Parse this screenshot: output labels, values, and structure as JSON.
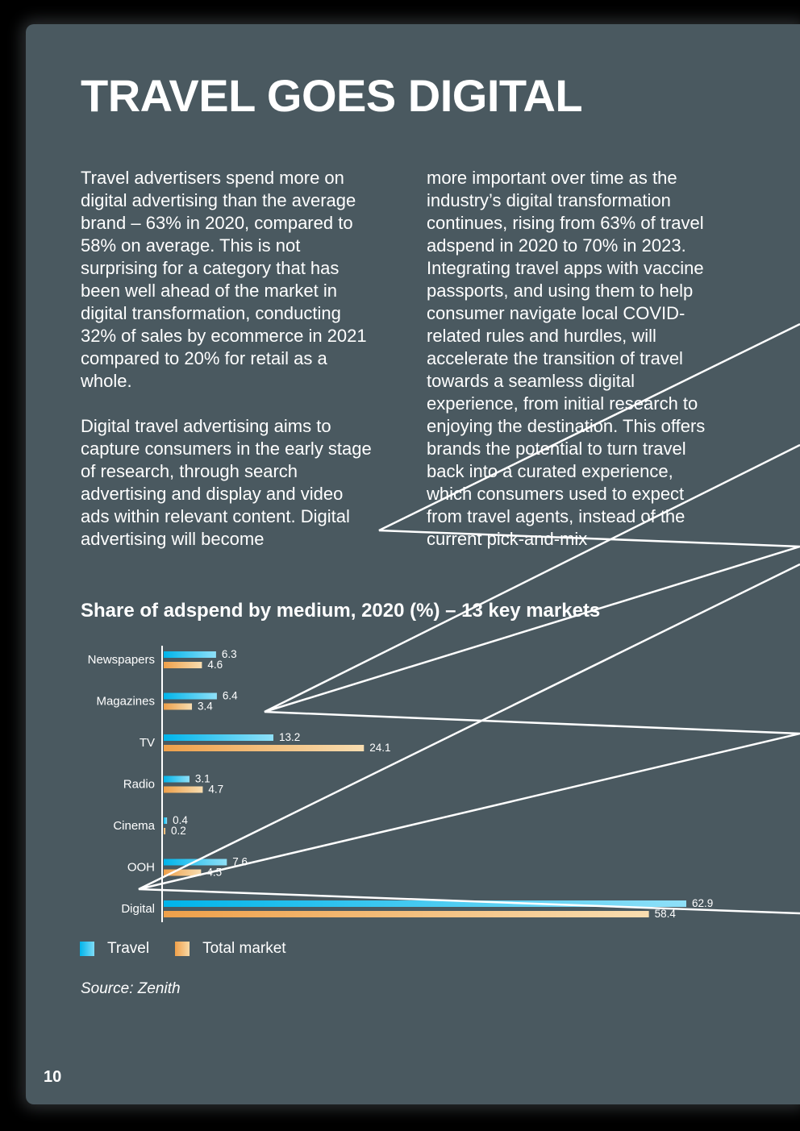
{
  "page": {
    "title": "TRAVEL GOES DIGITAL",
    "column1": [
      "Travel advertisers spend more on digital advertising than the average brand – 63% in 2020, compared to 58% on average. This is not surprising for a category that has been well ahead of the market in digital transformation, conducting 32% of sales by ecommerce in 2021 compared to 20% for retail as a whole.",
      "Digital travel advertising aims to capture consumers in the early stage of research, through search advertising and display and video ads within relevant content. Digital advertising will become"
    ],
    "column2": [
      "more important over time as the industry’s digital transformation continues, rising from 63% of travel adspend in 2020 to 70% in 2023. Integrating travel apps with vaccine passports, and using them to help consumer navigate local COVID-related rules and hurdles, will accelerate the transition of travel towards a seamless digital experience, from initial research to enjoying the destination. This offers brands the potential to turn travel back into a curated experience, which consumers used to expect from travel agents, instead of the current pick-and-mix"
    ],
    "source": "Source: Zenith",
    "page_number": "10"
  },
  "chart_data": {
    "type": "bar",
    "orientation": "horizontal",
    "title": "Share of adspend by medium, 2020 (%) – 13 key markets",
    "categories": [
      "Newspapers",
      "Magazines",
      "TV",
      "Radio",
      "Cinema",
      "OOH",
      "Digital"
    ],
    "series": [
      {
        "name": "Travel",
        "values": [
          6.3,
          6.4,
          13.2,
          3.1,
          0.4,
          7.6,
          62.9
        ],
        "color": "#00b4ea"
      },
      {
        "name": "Total market",
        "values": [
          4.6,
          3.4,
          24.1,
          4.7,
          0.2,
          4.5,
          58.4
        ],
        "color": "#f0a04a"
      }
    ],
    "xlim": [
      0,
      62.9
    ],
    "grid": false,
    "legend_position": "bottom-left"
  },
  "colors": {
    "background": "#4a5960",
    "travel_bar": "#00b4ea",
    "total_bar": "#f0a04a",
    "text": "#ffffff"
  }
}
